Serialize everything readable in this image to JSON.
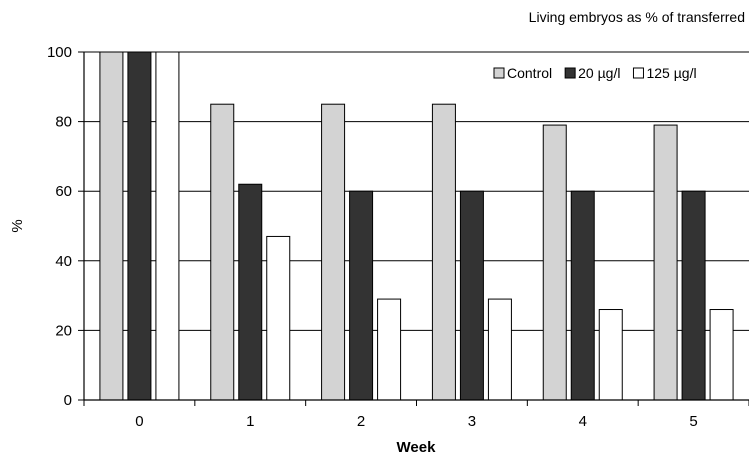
{
  "chart_data": {
    "type": "bar",
    "title": "Living embryos as % of transferred",
    "xlabel": "Week",
    "ylabel": "%",
    "categories": [
      "0",
      "1",
      "2",
      "3",
      "4",
      "5"
    ],
    "ylim": [
      0,
      100
    ],
    "yticks": [
      0,
      20,
      40,
      60,
      80,
      100
    ],
    "grid": true,
    "legend_position": "top-right",
    "series": [
      {
        "name": "Control",
        "color": "#d3d3d3",
        "values": [
          100,
          85,
          85,
          85,
          79,
          79
        ]
      },
      {
        "name": "20 µg/l",
        "color": "#333333",
        "values": [
          100,
          62,
          60,
          60,
          60,
          60
        ]
      },
      {
        "name": "125 µg/l",
        "color": "#ffffff",
        "values": [
          100,
          47,
          29,
          29,
          26,
          26
        ]
      }
    ]
  }
}
